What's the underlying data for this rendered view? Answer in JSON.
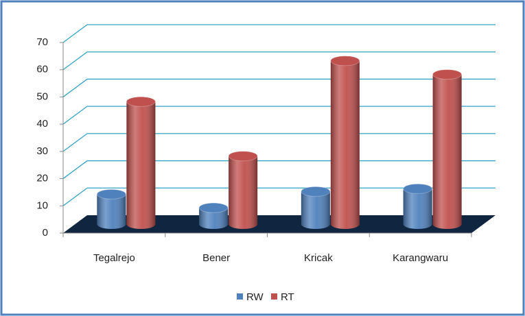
{
  "chart_data": {
    "type": "bar",
    "categories": [
      "Tegalrejo",
      "Bener",
      "Kricak",
      "Karangwaru"
    ],
    "series": [
      {
        "name": "RW",
        "color": "#4f81bd",
        "values": [
          11,
          6,
          12,
          13
        ]
      },
      {
        "name": "RT",
        "color": "#c0504d",
        "values": [
          45,
          25,
          60,
          55
        ]
      }
    ],
    "ylim": [
      0,
      70
    ],
    "yticks": [
      0,
      10,
      20,
      30,
      40,
      50,
      60,
      70
    ],
    "grid": true,
    "legend": "bottom"
  }
}
